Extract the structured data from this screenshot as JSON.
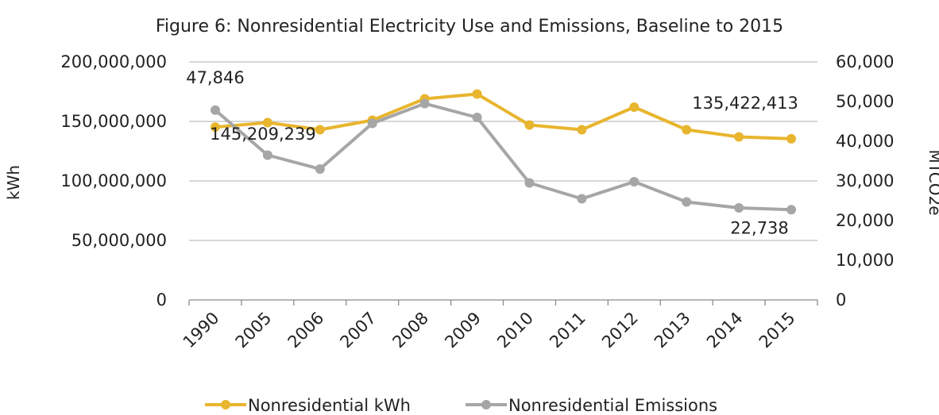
{
  "chart_data": {
    "type": "line",
    "title": "Figure 6: Nonresidential Electricity Use and Emissions, Baseline to 2015",
    "categories": [
      "1990",
      "2005",
      "2006",
      "2007",
      "2008",
      "2009",
      "2010",
      "2011",
      "2012",
      "2013",
      "2014",
      "2015"
    ],
    "ylabel": "kWh",
    "y2label": "MTCO2e",
    "ylim": [
      0,
      200000000
    ],
    "y2lim": [
      0,
      60000
    ],
    "yticks": [
      "0",
      "50,000,000",
      "100,000,000",
      "150,000,000",
      "200,000,000"
    ],
    "y2ticks": [
      "0",
      "10,000",
      "20,000",
      "30,000",
      "40,000",
      "50,000",
      "60,000"
    ],
    "grid": true,
    "legend_position": "bottom",
    "series": [
      {
        "name": "Nonresidential kWh",
        "axis": "left",
        "color": "#E8B52E",
        "values": [
          145209239,
          149000000,
          143000000,
          151000000,
          169000000,
          173000000,
          147000000,
          143000000,
          162000000,
          143000000,
          137000000,
          135422413
        ]
      },
      {
        "name": "Nonresidential Emissions",
        "axis": "right",
        "color": "#A6A6A6",
        "values": [
          47846,
          36500,
          33000,
          44500,
          49500,
          46000,
          29500,
          25500,
          29800,
          24700,
          23200,
          22738
        ]
      }
    ],
    "annotations": [
      {
        "series": 1,
        "index": 0,
        "text": "47,846"
      },
      {
        "series": 0,
        "index": 0,
        "text": "145,209,239"
      },
      {
        "series": 0,
        "index": 11,
        "text": "135,422,413"
      },
      {
        "series": 1,
        "index": 11,
        "text": "22,738"
      }
    ]
  }
}
